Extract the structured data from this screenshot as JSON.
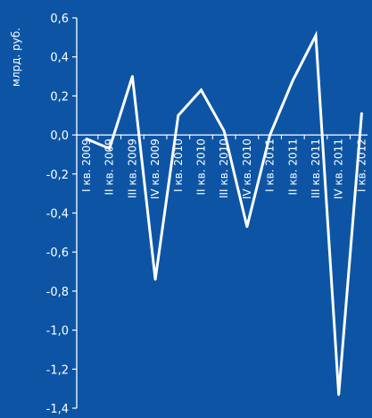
{
  "colors": {
    "background": "#0d55a4",
    "foreground": "#ffffff"
  },
  "chart_data": {
    "type": "line",
    "title": "",
    "xlabel": "",
    "ylabel": "млрд. руб.",
    "ylim": [
      -1.4,
      0.6
    ],
    "yticks": [
      0.6,
      0.4,
      0.2,
      0.0,
      -0.2,
      -0.4,
      -0.6,
      -0.8,
      -1.0,
      -1.2,
      -1.4
    ],
    "ytick_labels": [
      "0,6",
      "0,4",
      "0,2",
      "0,0",
      "-0,2",
      "-0,4",
      "-0,6",
      "-0,8",
      "-1,0",
      "-1,2",
      "-1,4"
    ],
    "grid": false,
    "legend": "none",
    "categories": [
      "I кв. 2009",
      "II кв. 2009",
      "III кв. 2009",
      "IV кв. 2009",
      "I кв. 2010",
      "II кв. 2010",
      "III кв. 2010",
      "IV кв. 2010",
      "I кв. 2011",
      "II кв. 2011",
      "III кв. 2011",
      "IV кв. 2011",
      "I кв. 2012"
    ],
    "series": [
      {
        "values": [
          -0.02,
          -0.07,
          0.3,
          -0.74,
          0.1,
          0.23,
          0.02,
          -0.47,
          0.0,
          0.28,
          0.51,
          -1.33,
          0.11
        ]
      }
    ]
  }
}
